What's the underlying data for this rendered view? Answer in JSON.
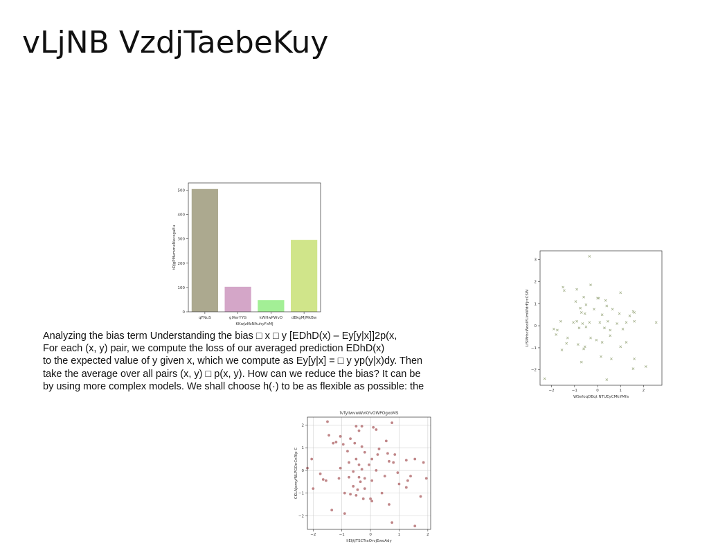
{
  "page": {
    "title": "vLjNB VzdjTaebeKuy",
    "paragraph_lines": [
      "Analyzing the bias term Understanding the bias □ x □ y [EDhD(x) – Ey[y|x]]2p(x,",
      "For each (x, y) pair, we compute the loss of our averaged prediction EDhD(x)",
      "to the expected value of y given x, which we compute as Ey[y|x] = □ y yp(y|x)dy. Then",
      "take the average over all pairs (x, y) □ p(x, y). How can we reduce the bias? It can be",
      "by using more complex models. We shall choose h(·) to be as flexible as possible: the"
    ]
  },
  "chart_data": [
    {
      "type": "bar",
      "title": "",
      "xlabel": "KKwJzIfbNAuhyFxMJ",
      "ylabel": "tDJgPMvmmeNecxgaEu",
      "categories": [
        "qFNuS",
        "glXerYYG",
        "kWHwPWvD",
        "dBkgMJMkBw"
      ],
      "values": [
        505,
        103,
        48,
        296
      ],
      "colors": [
        "#aca98f",
        "#d4a6c8",
        "#a3ef96",
        "#d0e58a"
      ],
      "ylim": [
        0,
        530
      ],
      "yticks": [
        0,
        100,
        200,
        300,
        400,
        500
      ],
      "grid": false
    },
    {
      "type": "scatter",
      "title": "",
      "xlabel": "WSefoqDBqt NTUEyCMkifMfa",
      "ylabel": "LfSMrbcWoolYLImWdrFjrcCSW",
      "marker": "x",
      "color": "#a3b08a",
      "xlim": [
        -2.5,
        2.8
      ],
      "ylim": [
        -2.7,
        3.4
      ],
      "xticks": [
        -2,
        -1,
        0,
        1,
        2
      ],
      "yticks": [
        -2,
        -1,
        0,
        1,
        2,
        3
      ],
      "grid": false,
      "points": [
        [
          -0.35,
          3.15
        ],
        [
          -0.3,
          1.85
        ],
        [
          -1.5,
          1.75
        ],
        [
          -1.45,
          1.6
        ],
        [
          -0.9,
          1.65
        ],
        [
          0.0,
          1.25
        ],
        [
          0.05,
          1.25
        ],
        [
          1.0,
          1.5
        ],
        [
          -0.6,
          1.3
        ],
        [
          -0.95,
          1.1
        ],
        [
          -0.5,
          0.95
        ],
        [
          0.35,
          1.15
        ],
        [
          0.4,
          0.9
        ],
        [
          -0.75,
          0.8
        ],
        [
          -0.15,
          0.75
        ],
        [
          0.65,
          0.75
        ],
        [
          1.55,
          0.65
        ],
        [
          1.6,
          0.6
        ],
        [
          -0.7,
          0.6
        ],
        [
          -0.55,
          0.55
        ],
        [
          0.2,
          0.5
        ],
        [
          0.95,
          0.55
        ],
        [
          1.4,
          0.45
        ],
        [
          -1.6,
          0.2
        ],
        [
          -1.05,
          0.15
        ],
        [
          -0.9,
          0.2
        ],
        [
          -0.65,
          0.1
        ],
        [
          -0.35,
          0.15
        ],
        [
          0.1,
          0.15
        ],
        [
          0.45,
          0.2
        ],
        [
          0.85,
          0.1
        ],
        [
          1.25,
          0.15
        ],
        [
          1.6,
          0.2
        ],
        [
          2.55,
          0.15
        ],
        [
          -1.9,
          -0.15
        ],
        [
          -1.75,
          -0.2
        ],
        [
          -0.8,
          -0.1
        ],
        [
          -0.5,
          -0.05
        ],
        [
          0.3,
          -0.1
        ],
        [
          0.55,
          -0.2
        ],
        [
          1.1,
          -0.15
        ],
        [
          -1.8,
          -0.4
        ],
        [
          -1.3,
          -0.55
        ],
        [
          -0.3,
          -0.55
        ],
        [
          0.55,
          -0.45
        ],
        [
          -1.35,
          -0.8
        ],
        [
          -0.85,
          -0.85
        ],
        [
          -0.55,
          -0.95
        ],
        [
          -0.05,
          -0.65
        ],
        [
          0.2,
          -0.75
        ],
        [
          1.0,
          -0.95
        ],
        [
          1.25,
          -0.75
        ],
        [
          -1.55,
          -1.1
        ],
        [
          -0.6,
          -1.05
        ],
        [
          0.15,
          -1.4
        ],
        [
          0.6,
          -1.5
        ],
        [
          1.6,
          -1.5
        ],
        [
          -0.7,
          -1.65
        ],
        [
          2.1,
          -1.85
        ],
        [
          1.55,
          -1.95
        ],
        [
          -2.3,
          -2.4
        ],
        [
          0.4,
          -2.45
        ]
      ]
    },
    {
      "type": "scatter",
      "title": "fvTyllwvwWvKYvOWPOgxoMS",
      "xlabel": "liEIjtJTSCTraOrvjEwoAdy",
      "ylabel": "CKLAJemyfNLPGOnCnRIp C",
      "marker": "o",
      "color": "#c08688",
      "xlim": [
        -2.2,
        2.1
      ],
      "ylim": [
        -2.6,
        2.35
      ],
      "xticks": [
        -2,
        -1,
        0,
        1,
        2
      ],
      "yticks": [
        -2,
        -1,
        0,
        1,
        2
      ],
      "grid": true,
      "points": [
        [
          -1.5,
          2.15
        ],
        [
          -0.3,
          1.95
        ],
        [
          -0.5,
          1.95
        ],
        [
          0.1,
          1.9
        ],
        [
          -0.4,
          1.75
        ],
        [
          0.75,
          2.1
        ],
        [
          0.2,
          1.8
        ],
        [
          -1.45,
          1.55
        ],
        [
          -1.05,
          1.5
        ],
        [
          -1.2,
          1.25
        ],
        [
          -0.7,
          1.4
        ],
        [
          -0.95,
          1.15
        ],
        [
          -0.55,
          1.2
        ],
        [
          -1.3,
          1.2
        ],
        [
          -0.3,
          1.05
        ],
        [
          0.55,
          1.3
        ],
        [
          0.3,
          0.95
        ],
        [
          -0.8,
          0.85
        ],
        [
          0.25,
          0.7
        ],
        [
          0.6,
          0.75
        ],
        [
          0.85,
          0.7
        ],
        [
          -0.2,
          0.8
        ],
        [
          -2.05,
          0.5
        ],
        [
          1.25,
          0.45
        ],
        [
          1.55,
          0.5
        ],
        [
          -0.5,
          0.5
        ],
        [
          0.05,
          0.5
        ],
        [
          0.65,
          0.4
        ],
        [
          -0.75,
          0.35
        ],
        [
          -0.4,
          0.25
        ],
        [
          -0.05,
          0.25
        ],
        [
          0.8,
          0.35
        ],
        [
          1.85,
          0.35
        ],
        [
          -2.2,
          0.1
        ],
        [
          -1.05,
          0.1
        ],
        [
          -0.3,
          0.05
        ],
        [
          0.2,
          0.0
        ],
        [
          -1.75,
          -0.15
        ],
        [
          -0.6,
          -0.05
        ],
        [
          0.95,
          -0.1
        ],
        [
          -1.1,
          -0.35
        ],
        [
          -0.75,
          -0.3
        ],
        [
          -0.4,
          -0.3
        ],
        [
          -0.2,
          -0.35
        ],
        [
          0.5,
          -0.25
        ],
        [
          1.4,
          -0.25
        ],
        [
          -1.55,
          -0.45
        ],
        [
          -1.65,
          -0.4
        ],
        [
          -0.35,
          -0.5
        ],
        [
          0.05,
          -0.45
        ],
        [
          1.3,
          -0.45
        ],
        [
          1.0,
          -0.6
        ],
        [
          -0.6,
          -0.7
        ],
        [
          -0.45,
          -0.85
        ],
        [
          -2.0,
          -0.8
        ],
        [
          -0.2,
          -0.8
        ],
        [
          1.25,
          -0.75
        ],
        [
          1.95,
          -0.35
        ],
        [
          -0.9,
          -1.0
        ],
        [
          -0.7,
          -1.05
        ],
        [
          0.4,
          -1.0
        ],
        [
          -0.5,
          -1.1
        ],
        [
          -0.25,
          -1.25
        ],
        [
          0.0,
          -1.25
        ],
        [
          0.05,
          -1.35
        ],
        [
          -0.9,
          -1.9
        ],
        [
          -1.35,
          -1.75
        ],
        [
          0.65,
          -1.5
        ],
        [
          1.75,
          -1.15
        ],
        [
          0.75,
          -2.3
        ],
        [
          1.55,
          -2.45
        ]
      ]
    }
  ]
}
